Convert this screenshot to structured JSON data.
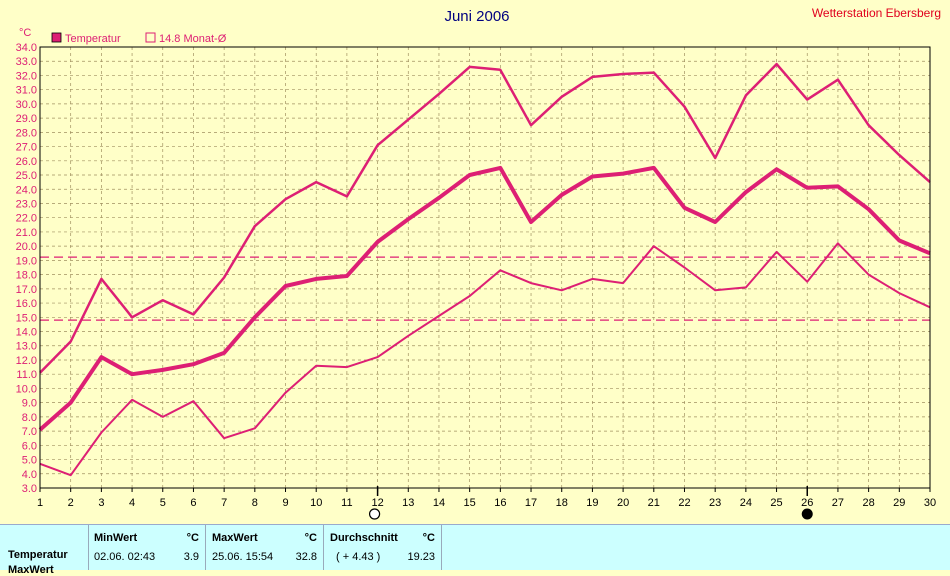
{
  "chart_data": {
    "type": "line",
    "title": "Juni 2006",
    "station": "Wetterstation Ebersberg",
    "ylabel": "°C",
    "ylim": [
      3.0,
      34.0
    ],
    "y_ticks": [
      "3.0",
      "4.0",
      "5.0",
      "6.0",
      "7.0",
      "8.0",
      "9.0",
      "10.0",
      "11.0",
      "12.0",
      "13.0",
      "14.0",
      "15.0",
      "16.0",
      "17.0",
      "18.0",
      "19.0",
      "20.0",
      "21.0",
      "22.0",
      "23.0",
      "24.0",
      "25.0",
      "26.0",
      "27.0",
      "28.0",
      "29.0",
      "30.0",
      "31.0",
      "32.0",
      "33.0",
      "34.0"
    ],
    "x": [
      1,
      2,
      3,
      4,
      5,
      6,
      7,
      8,
      9,
      10,
      11,
      12,
      13,
      14,
      15,
      16,
      17,
      18,
      19,
      20,
      21,
      22,
      23,
      24,
      25,
      26,
      27,
      28,
      29,
      30
    ],
    "x_ticks": [
      "1",
      "2",
      "3",
      "4",
      "5",
      "6",
      "7",
      "8",
      "9",
      "10",
      "11",
      "12",
      "13",
      "14",
      "15",
      "16",
      "17",
      "18",
      "19",
      "20",
      "21",
      "22",
      "23",
      "24",
      "25",
      "26",
      "27",
      "28",
      "29",
      "30"
    ],
    "grid": true,
    "legend": [
      {
        "label": "Temperatur",
        "color": "#dd1f74",
        "filled": true
      },
      {
        "label": "14.8 Monat-Ø",
        "color": "#dd1f74",
        "filled": false
      }
    ],
    "series": [
      {
        "role": "max",
        "color": "#dd1f74",
        "values": [
          11.1,
          13.3,
          17.7,
          15.0,
          16.2,
          15.2,
          17.8,
          21.4,
          23.3,
          24.5,
          23.5,
          27.1,
          28.9,
          30.7,
          32.6,
          32.4,
          28.5,
          30.5,
          31.9,
          32.1,
          32.2,
          29.8,
          26.2,
          30.6,
          32.8,
          30.3,
          31.7,
          28.5,
          26.4,
          24.5
        ]
      },
      {
        "role": "mean",
        "color": "#dd1f74",
        "values": [
          7.1,
          9.0,
          12.2,
          11.0,
          11.3,
          11.7,
          12.5,
          15.0,
          17.2,
          17.7,
          17.9,
          20.3,
          21.9,
          23.4,
          25.0,
          25.5,
          21.7,
          23.6,
          24.9,
          25.1,
          25.5,
          22.7,
          21.7,
          23.8,
          25.4,
          24.1,
          24.2,
          22.6,
          20.4,
          19.5
        ]
      },
      {
        "role": "min",
        "color": "#dd1f74",
        "values": [
          4.7,
          3.9,
          6.9,
          9.2,
          8.0,
          9.1,
          6.5,
          7.2,
          9.7,
          11.6,
          11.5,
          12.2,
          13.7,
          15.1,
          16.5,
          18.3,
          17.4,
          16.9,
          17.7,
          17.4,
          20.0,
          18.5,
          16.9,
          17.1,
          19.6,
          17.5,
          20.2,
          18.0,
          16.7,
          15.7
        ]
      }
    ],
    "reference_lines": [
      {
        "y": 19.23,
        "color": "#dd1f74",
        "style": "dashed"
      },
      {
        "y": 14.8,
        "color": "#dd1f74",
        "style": "dashed"
      }
    ],
    "moon_phases": [
      {
        "day": 12,
        "phase": "full"
      },
      {
        "day": 26,
        "phase": "new"
      }
    ]
  },
  "stats": {
    "row_label": "Temperatur",
    "min": {
      "header": "MinWert",
      "unit": "°C",
      "datetime": "02.06.  02:43",
      "value": "3.9"
    },
    "max": {
      "header": "MaxWert",
      "unit": "°C",
      "datetime": "25.06.  15:54",
      "value": "32.8"
    },
    "avg": {
      "header": "Durchschnitt",
      "unit": "°C",
      "delta": "( + 4.43 )",
      "value": "19.23"
    },
    "next_row_label": "MaxWert"
  }
}
